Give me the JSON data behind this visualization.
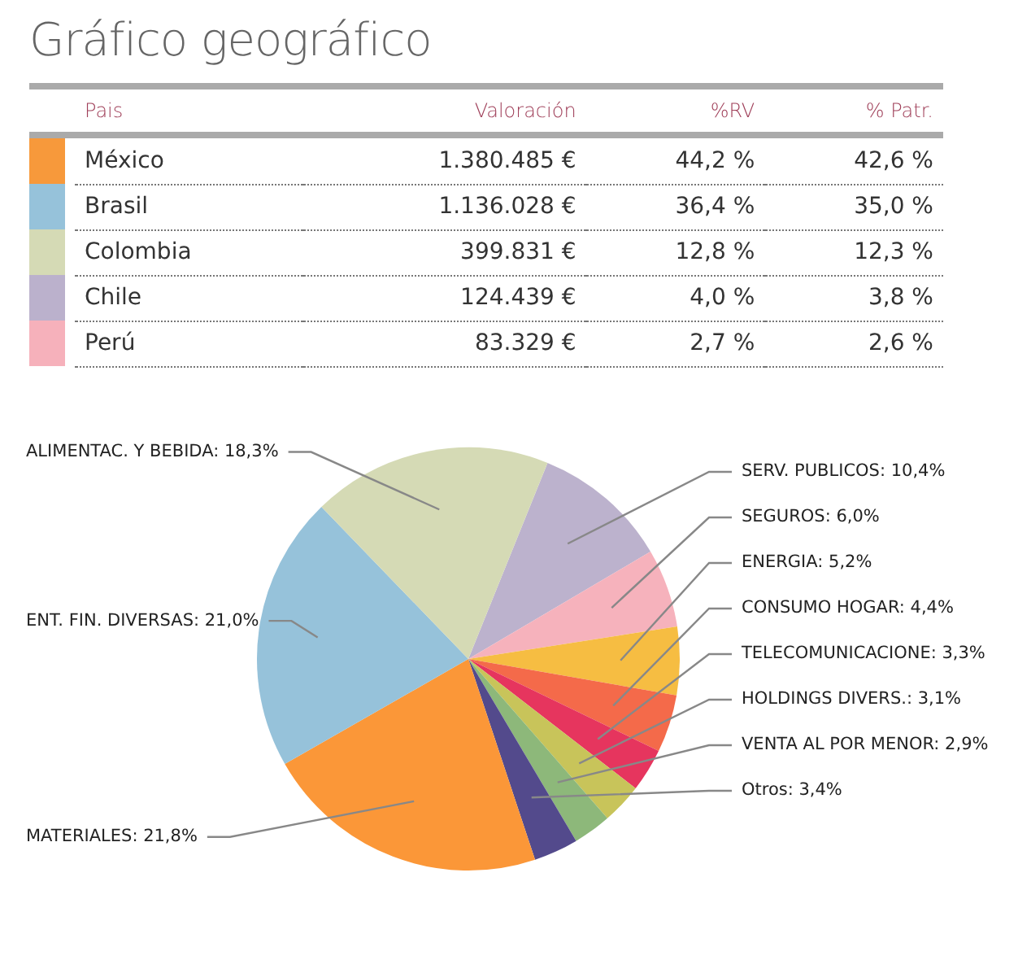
{
  "chart_data": [
    {
      "type": "other",
      "title": "Gráfico geográfico",
      "legend_title": "Pais",
      "categories": [
        "México",
        "Brasil",
        "Colombia",
        "Chile",
        "Perú"
      ],
      "colors": [
        "#f7993b",
        "#96c2da",
        "#d5dab5",
        "#bbb1cc",
        "#f6b1bb"
      ],
      "series": [
        {
          "name": "Valoración",
          "values": [
            1380485,
            1136028,
            399831,
            124439,
            83329
          ],
          "value_labels": [
            "1.380.485 €",
            "1.136.028 €",
            "399.831 €",
            "124.439 €",
            "83.329 €"
          ]
        },
        {
          "name": "%RV",
          "values": [
            44.2,
            36.4,
            12.8,
            4.0,
            2.7
          ],
          "value_labels": [
            "44,2 %",
            "36,4 %",
            "12,8 %",
            "4,0 %",
            "2,7 %"
          ]
        },
        {
          "name": "% Patr.",
          "values": [
            42.6,
            35.0,
            12.3,
            3.8,
            2.6
          ],
          "value_labels": [
            "42,6 %",
            "35,0 %",
            "12,3 %",
            "3,8 %",
            "2,6 %"
          ]
        }
      ]
    },
    {
      "type": "pie",
      "categories": [
        "SERV. PUBLICOS",
        "SEGUROS",
        "ENERGIA",
        "CONSUMO HOGAR",
        "TELECOMUNICACIONE",
        "HOLDINGS DIVERS.",
        "VENTA AL POR MENOR",
        "Otros",
        "MATERIALES",
        "ENT. FIN. DIVERSAS",
        "ALIMENTAC. Y BEBIDA"
      ],
      "values": [
        10.4,
        6.0,
        5.2,
        4.4,
        3.3,
        3.1,
        2.9,
        3.4,
        21.8,
        21.0,
        18.3
      ],
      "value_labels": [
        "10,4%",
        "6,0%",
        "5,2%",
        "4,4%",
        "3,3%",
        "3,1%",
        "2,9%",
        "3,4%",
        "21,8%",
        "21,0%",
        "18,3%"
      ],
      "colors": [
        "#bcb2cd",
        "#f6b2bc",
        "#f6bd42",
        "#f46a4a",
        "#e6355e",
        "#c8c45a",
        "#8db87a",
        "#534a8c",
        "#fb9738",
        "#96c2da",
        "#d5dab5"
      ]
    }
  ]
}
